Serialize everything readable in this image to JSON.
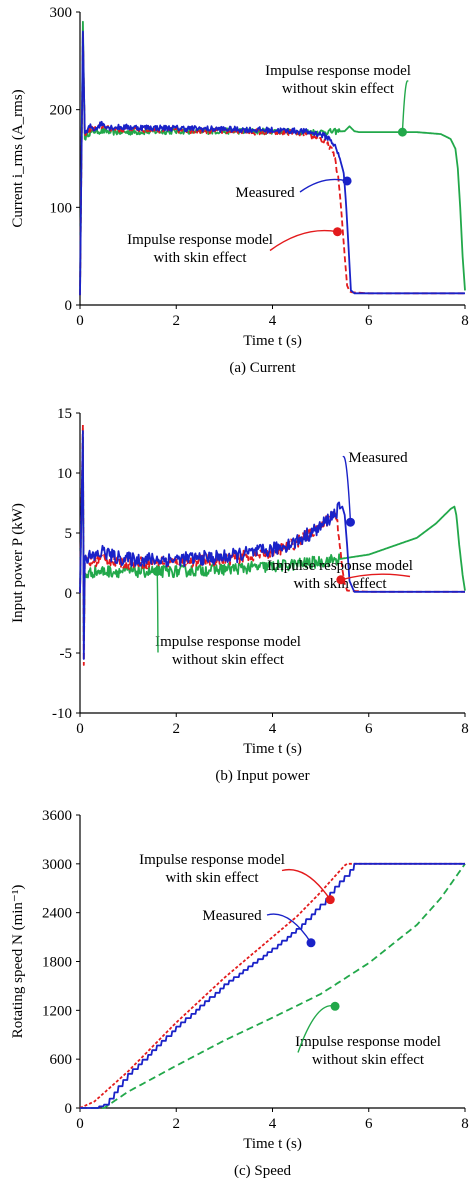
{
  "chart_data": [
    {
      "id": "current",
      "type": "line",
      "caption": "(a) Current",
      "xlabel": "Time t (s)",
      "ylabel": "Current i_rms (A_rms)",
      "xlim": [
        0,
        8
      ],
      "ylim": [
        0,
        300
      ],
      "xticks": [
        0,
        2,
        4,
        6,
        8
      ],
      "yticks": [
        0,
        100,
        200,
        300
      ],
      "grid": false,
      "series": [
        {
          "name": "Measured",
          "color": "#1a22c8",
          "dash": "solid",
          "noise": 3,
          "x": [
            0,
            0.06,
            0.1,
            0.15,
            0.2,
            0.3,
            0.45,
            0.6,
            0.8,
            1,
            2,
            3,
            4,
            4.6,
            5,
            5.2,
            5.3,
            5.4,
            5.48,
            5.52,
            5.58,
            5.63,
            5.7,
            6,
            7,
            8
          ],
          "y": [
            10,
            280,
            176,
            177,
            183,
            180,
            186,
            182,
            182,
            182,
            181,
            180,
            179,
            178,
            175,
            170,
            162,
            150,
            135,
            110,
            60,
            15,
            12,
            12,
            12,
            12
          ]
        },
        {
          "name": "Impulse response model with skin effect",
          "color": "#e31a1c",
          "dash": "6,3",
          "noise": 3,
          "x": [
            0,
            0.06,
            0.1,
            0.15,
            0.2,
            0.3,
            0.45,
            0.6,
            0.8,
            1,
            2,
            3,
            4,
            4.6,
            5,
            5.2,
            5.3,
            5.38,
            5.44,
            5.5,
            5.55,
            5.6,
            5.65,
            6,
            7,
            8
          ],
          "y": [
            10,
            278,
            176,
            178,
            180,
            180,
            183,
            180,
            180,
            180,
            179,
            178,
            177,
            176,
            170,
            162,
            150,
            125,
            90,
            50,
            20,
            14,
            13,
            12,
            12,
            12
          ]
        },
        {
          "name": "Impulse response model without skin effect",
          "color": "#22a84a",
          "dash": "solid",
          "noise": 3,
          "x": [
            0,
            0.06,
            0.1,
            0.15,
            0.3,
            0.5,
            0.7,
            1,
            2,
            3,
            4,
            5,
            5.5,
            5.6,
            5.7,
            5.8,
            6,
            7,
            7.5,
            7.7,
            7.8,
            7.85,
            7.9,
            7.95,
            8
          ],
          "y": [
            10,
            290,
            170,
            175,
            178,
            178,
            177,
            177,
            178,
            178,
            178,
            177,
            178,
            183,
            178,
            177,
            177,
            177,
            175,
            170,
            160,
            140,
            100,
            50,
            15
          ]
        }
      ],
      "annotations": [
        {
          "label": [
            "Impulse response model",
            "without skin effect"
          ],
          "series": 2,
          "point": [
            6.7,
            177
          ]
        },
        {
          "label": [
            "Measured"
          ],
          "series": 0,
          "point": [
            5.55,
            127
          ]
        },
        {
          "label": [
            "Impulse response model",
            "with skin effect"
          ],
          "series": 1,
          "point": [
            5.35,
            75
          ]
        }
      ]
    },
    {
      "id": "power",
      "type": "line",
      "caption": "(b) Input power",
      "xlabel": "Time t (s)",
      "ylabel": "Input power P (kW)",
      "xlim": [
        0,
        8
      ],
      "ylim": [
        -10,
        15
      ],
      "xticks": [
        0,
        2,
        4,
        6,
        8
      ],
      "yticks": [
        -10,
        -5,
        0,
        5,
        10,
        15
      ],
      "grid": false,
      "series": [
        {
          "name": "Measured",
          "color": "#1a22c8",
          "dash": "solid",
          "noise": 0.6,
          "x": [
            0,
            0.06,
            0.08,
            0.1,
            0.15,
            0.3,
            0.5,
            0.7,
            1,
            2,
            3,
            4,
            4.5,
            5,
            5.3,
            5.45,
            5.5,
            5.55,
            5.6,
            5.7,
            6,
            7,
            8
          ],
          "y": [
            0,
            13.5,
            -5.5,
            3,
            3,
            3,
            3.5,
            3,
            2.8,
            2.8,
            3,
            3.6,
            4.3,
            5.5,
            6.7,
            7.2,
            6.5,
            4,
            1,
            0.1,
            0.1,
            0.1,
            0.1
          ]
        },
        {
          "name": "Impulse response model with skin effect",
          "color": "#e31a1c",
          "dash": "6,3",
          "noise": 0.5,
          "x": [
            0,
            0.06,
            0.08,
            0.1,
            0.15,
            0.3,
            0.5,
            0.7,
            1,
            2,
            3,
            4,
            4.5,
            5,
            5.2,
            5.3,
            5.38,
            5.45,
            5.5,
            5.55,
            6,
            7,
            8
          ],
          "y": [
            0,
            14,
            -6,
            2.5,
            2.6,
            2.6,
            3,
            2.6,
            2.5,
            2.6,
            2.8,
            3.4,
            4.2,
            5.5,
            6.4,
            6.8,
            5,
            2,
            0.8,
            0.2,
            0.1,
            0.1,
            0.1
          ]
        },
        {
          "name": "Impulse response model without skin effect",
          "color": "#22a84a",
          "dash": "solid",
          "noise": 0.5,
          "x": [
            0,
            0.06,
            0.08,
            0.1,
            0.3,
            0.6,
            1,
            2,
            3,
            4,
            5,
            6,
            7,
            7.4,
            7.6,
            7.7,
            7.78,
            7.82,
            7.88,
            7.95,
            8
          ],
          "y": [
            0,
            13,
            -4,
            1.5,
            1.8,
            1.8,
            1.8,
            1.8,
            2,
            2.2,
            2.6,
            3.2,
            4.6,
            5.8,
            6.6,
            7,
            7.2,
            6.5,
            4,
            1.5,
            0.2
          ]
        }
      ],
      "annotations": [
        {
          "label": [
            "Measured"
          ],
          "series": 0,
          "point": [
            5.62,
            5.9
          ]
        },
        {
          "label": [
            "Impulse response model",
            "with skin effect"
          ],
          "series": 1,
          "point": [
            5.42,
            1.1
          ]
        },
        {
          "label": [
            "Impulse response model",
            "without skin effect"
          ],
          "series": 2,
          "point": [
            1.6,
            1.8
          ]
        }
      ]
    },
    {
      "id": "speed",
      "type": "line",
      "caption": "(c) Speed",
      "xlabel": "Time t (s)",
      "ylabel": "Rotating speed N (min⁻¹)",
      "xlim": [
        0,
        8
      ],
      "ylim": [
        0,
        3600
      ],
      "xticks": [
        0,
        2,
        4,
        6,
        8
      ],
      "yticks": [
        0,
        600,
        1200,
        1800,
        2400,
        3000,
        3600
      ],
      "grid": false,
      "series": [
        {
          "name": "Measured",
          "color": "#1a22c8",
          "dash": "solid",
          "noise": 0,
          "step": 0.1,
          "x": [
            0,
            0.3,
            0.5,
            1,
            2,
            3,
            4,
            4.5,
            5,
            5.3,
            5.5,
            5.7,
            6,
            7,
            8
          ],
          "y": [
            0,
            0,
            40,
            420,
            1000,
            1520,
            1960,
            2200,
            2500,
            2720,
            2850,
            3000,
            3000,
            3000,
            3000
          ]
        },
        {
          "name": "Impulse response model with skin effect",
          "color": "#e31a1c",
          "dash": "3,2",
          "noise": 0,
          "x": [
            0,
            0.3,
            1,
            2,
            3,
            4,
            4.5,
            5,
            5.3,
            5.5,
            5.55,
            6,
            7,
            8
          ],
          "y": [
            0,
            80,
            450,
            1050,
            1600,
            2100,
            2350,
            2650,
            2850,
            2980,
            3000,
            3000,
            3000,
            3000
          ]
        },
        {
          "name": "Impulse response model without skin effect",
          "color": "#22a84a",
          "dash": "7,4",
          "noise": 0,
          "x": [
            0,
            0.5,
            1,
            2,
            3,
            4,
            5,
            6,
            7,
            7.5,
            8
          ],
          "y": [
            0,
            0,
            200,
            520,
            830,
            1110,
            1400,
            1780,
            2250,
            2580,
            3000
          ]
        }
      ],
      "annotations": [
        {
          "label": [
            "Impulse response model",
            "with skin effect"
          ],
          "series": 1,
          "point": [
            5.2,
            2560
          ]
        },
        {
          "label": [
            "Measured"
          ],
          "series": 0,
          "point": [
            4.8,
            2030
          ]
        },
        {
          "label": [
            "Impulse response model",
            "without skin effect"
          ],
          "series": 2,
          "point": [
            5.3,
            1250
          ]
        }
      ]
    }
  ]
}
